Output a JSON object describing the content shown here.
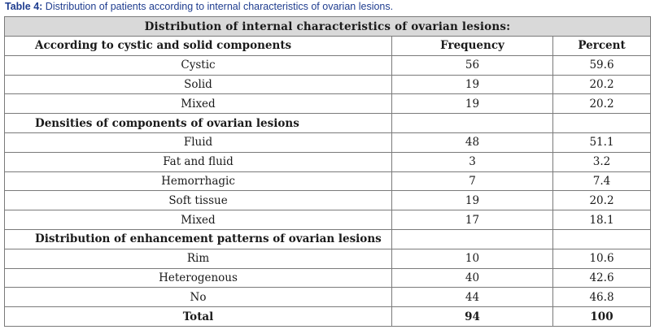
{
  "caption": {
    "label": "Table 4:",
    "text": "Distribution of patients according to internal characteristics of ovarian lesions."
  },
  "table": {
    "title": "Distribution of internal characteristics of ovarian lesions:",
    "sections": [
      {
        "heading": "According to cystic and solid components",
        "col2": "Frequency",
        "col3": "Percent",
        "rows": [
          {
            "label": "Cystic",
            "frequency": "56",
            "percent": "59.6"
          },
          {
            "label": "Solid",
            "frequency": "19",
            "percent": "20.2"
          },
          {
            "label": "Mixed",
            "frequency": "19",
            "percent": "20.2"
          }
        ]
      },
      {
        "heading": "Densities of components of ovarian lesions",
        "col2": "",
        "col3": "",
        "rows": [
          {
            "label": "Fluid",
            "frequency": "48",
            "percent": "51.1"
          },
          {
            "label": "Fat and fluid",
            "frequency": "3",
            "percent": "3.2"
          },
          {
            "label": "Hemorrhagic",
            "frequency": "7",
            "percent": "7.4"
          },
          {
            "label": "Soft tissue",
            "frequency": "19",
            "percent": "20.2"
          },
          {
            "label": "Mixed",
            "frequency": "17",
            "percent": "18.1"
          }
        ]
      },
      {
        "heading": "Distribution of enhancement patterns of ovarian lesions",
        "col2": "",
        "col3": "",
        "rows": [
          {
            "label": "Rim",
            "frequency": "10",
            "percent": "10.6"
          },
          {
            "label": "Heterogenous",
            "frequency": "40",
            "percent": "42.6"
          },
          {
            "label": "No",
            "frequency": "44",
            "percent": "46.8"
          }
        ]
      }
    ],
    "total": {
      "label": "Total",
      "frequency": "94",
      "percent": "100"
    }
  }
}
